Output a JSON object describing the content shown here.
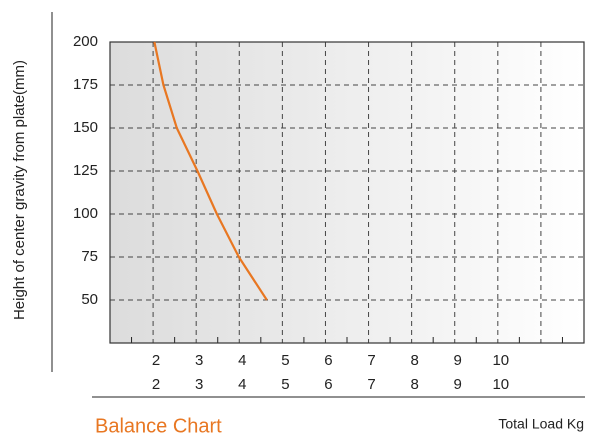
{
  "chart_data": {
    "type": "line",
    "title": "Balance Chart",
    "xlabel": "Total Load Kg",
    "ylabel": "Height of center gravity from plate(mm)",
    "x": [
      2.03,
      2.24,
      2.55,
      3.03,
      3.48,
      3.99,
      4.64
    ],
    "series": [
      {
        "color": "#e87722",
        "values": [
          200,
          175,
          150,
          125,
          100,
          75,
          50
        ]
      }
    ],
    "xlim": [
      1,
      12
    ],
    "xticks": [
      2,
      3,
      4,
      5,
      6,
      7,
      8,
      9,
      10
    ],
    "xgrid": [
      2,
      3,
      4,
      5,
      6,
      7,
      8,
      9,
      10,
      11
    ],
    "xminor": [
      1.5,
      2.5,
      3.5,
      4.5,
      5.5,
      6.5,
      7.5,
      8.5,
      9.5,
      10.5,
      11.5
    ],
    "ylim": [
      25,
      200
    ],
    "yticks": [
      50,
      75,
      100,
      125,
      150,
      175,
      200
    ],
    "grid": true
  }
}
